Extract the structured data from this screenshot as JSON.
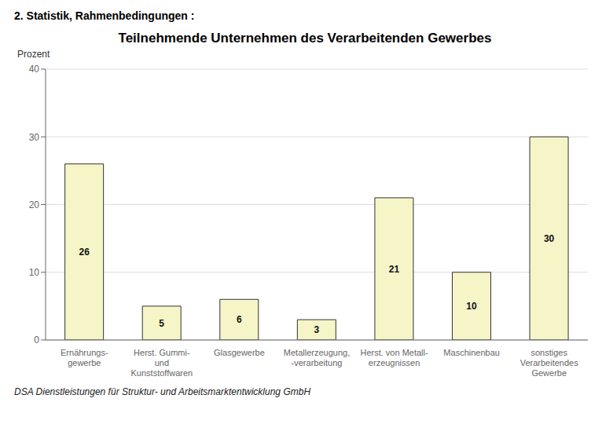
{
  "chart_data": {
    "type": "bar",
    "title": "Teilnehmende Unternehmen des Verarbeitenden Gewerbes",
    "ylabel": "Prozent",
    "annotations": [
      "2. Statistik, Rahmenbedingungen :",
      "DSA Dienstleistungen für Struktur- und Arbeitsmarktentwicklung GmbH"
    ],
    "categories": [
      "Ernährungs-\ngewerbe",
      "Herst. Gummi-\nund\nKunststoffwaren",
      "Glasgewerbe",
      "Metallerzeugung,\n-verarbeitung",
      "Herst. von Metall-\nerzeugnissen",
      "Maschinenbau",
      "sonstiges\nVerarbeitendes\nGewerbe"
    ],
    "values": [
      26,
      5,
      6,
      3,
      21,
      10,
      30
    ],
    "color": "#f5f5c8",
    "ylim": [
      0,
      40
    ],
    "yticks": [
      0,
      10,
      20,
      30,
      40
    ],
    "grid": true,
    "data_labels": true
  }
}
